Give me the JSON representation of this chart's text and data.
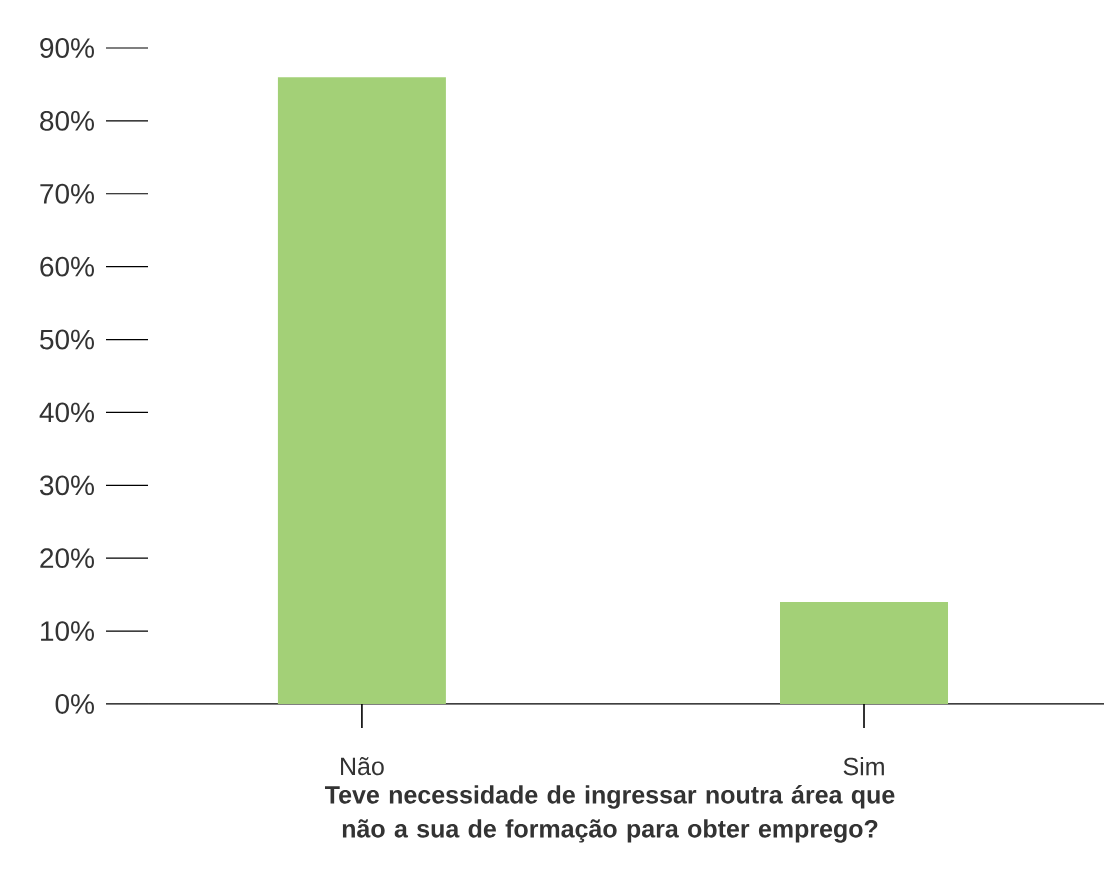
{
  "chart_data": {
    "type": "bar",
    "xlabel": "Teve necessidade de ingressar noutra área que não a sua de formação para obter emprego?",
    "categories": [
      "Não",
      "Sim"
    ],
    "values": [
      86,
      14
    ],
    "color": "#a3d077",
    "ylim": [
      0,
      90
    ],
    "yticks": [
      {
        "value": 0,
        "label": "0%"
      },
      {
        "value": 10,
        "label": "10%"
      },
      {
        "value": 20,
        "label": "20%"
      },
      {
        "value": 30,
        "label": "30%"
      },
      {
        "value": 40,
        "label": "40%"
      },
      {
        "value": 50,
        "label": "50%"
      },
      {
        "value": 60,
        "label": "60%"
      },
      {
        "value": 70,
        "label": "70%"
      },
      {
        "value": 80,
        "label": "80%"
      },
      {
        "value": 90,
        "label": "90%"
      }
    ]
  }
}
